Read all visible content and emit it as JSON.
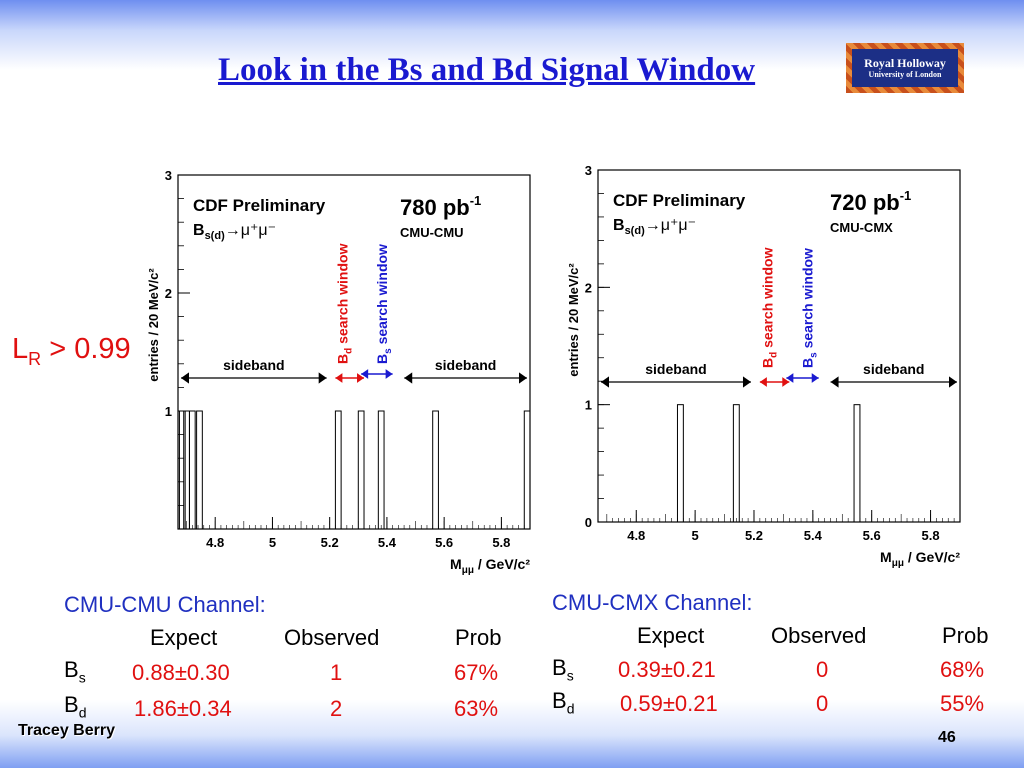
{
  "slide": {
    "title": "Look in the Bs and Bd Signal Window",
    "logo_line1": "Royal Holloway",
    "logo_line2": "University of London",
    "lr_main": "L",
    "lr_sub": "R",
    "lr_rest": " > 0.99",
    "footer_author": "Tracey Berry",
    "page_number": "46"
  },
  "colors": {
    "title": "#1a1ad0",
    "channel_title": "#2030c0",
    "value_red": "#e01010",
    "bd_window": "#e01010",
    "bs_window": "#1a1ad0"
  },
  "chart_data": [
    {
      "type": "bar",
      "panel": "left",
      "header": "CDF Preliminary",
      "process_main": "B",
      "process_sub": "s(d)",
      "process_rest": "→μ⁺μ⁻",
      "luminosity": "780 pb",
      "luminosity_exp": "-1",
      "channel_tag": "CMU-CMU",
      "xlabel": "M",
      "xlabel_sub": "μμ",
      "xlabel_rest": " / GeV/c²",
      "ylabel": "entries / 20 MeV/c²",
      "xlim": [
        4.67,
        5.9
      ],
      "ylim": [
        0,
        3
      ],
      "xticks": [
        "4.8",
        "5",
        "5.2",
        "5.4",
        "5.6",
        "5.8"
      ],
      "xtick_values": [
        4.8,
        5.0,
        5.2,
        5.4,
        5.6,
        5.8
      ],
      "yticks": [
        "1",
        "2",
        "3"
      ],
      "ytick_values": [
        1,
        2,
        3
      ],
      "events": [
        4.675,
        4.69,
        4.71,
        4.735,
        5.22,
        5.3,
        5.37,
        5.56,
        5.88
      ],
      "sideband_label": "sideband",
      "bd_window_label": "search window",
      "bs_window_label": "search window",
      "bd_window": [
        5.22,
        5.32
      ],
      "bs_window": [
        5.31,
        5.42
      ],
      "sideband_low": [
        4.67,
        5.2
      ],
      "sideband_high": [
        5.45,
        5.9
      ]
    },
    {
      "type": "bar",
      "panel": "right",
      "header": "CDF Preliminary",
      "process_main": "B",
      "process_sub": "s(d)",
      "process_rest": "→μ⁺μ⁻",
      "luminosity": "720 pb",
      "luminosity_exp": "-1",
      "channel_tag": "CMU-CMX",
      "xlabel": "M",
      "xlabel_sub": "μμ",
      "xlabel_rest": " / GeV/c²",
      "ylabel": "entries / 20 MeV/c²",
      "xlim": [
        4.67,
        5.9
      ],
      "ylim": [
        0,
        3
      ],
      "xticks": [
        "4.8",
        "5",
        "5.2",
        "5.4",
        "5.6",
        "5.8"
      ],
      "xtick_values": [
        4.8,
        5.0,
        5.2,
        5.4,
        5.6,
        5.8
      ],
      "yticks": [
        "0",
        "1",
        "2",
        "3"
      ],
      "ytick_values": [
        0,
        1,
        2,
        3
      ],
      "events": [
        4.94,
        5.13,
        5.54
      ],
      "sideband_label": "sideband",
      "bd_window_label": "search window",
      "bs_window_label": "search window",
      "bd_window": [
        5.22,
        5.32
      ],
      "bs_window": [
        5.31,
        5.42
      ],
      "sideband_low": [
        4.67,
        5.2
      ],
      "sideband_high": [
        5.45,
        5.9
      ]
    }
  ],
  "tables": {
    "left": {
      "title": "CMU-CMU Channel:",
      "headers": [
        "Expect",
        "Observed",
        "Prob"
      ],
      "rows": [
        {
          "label": "B",
          "label_sub": "s",
          "expect": "0.88±0.30",
          "observed": "1",
          "prob": "67%"
        },
        {
          "label": "B",
          "label_sub": "d",
          "expect": "1.86±0.34",
          "observed": "2",
          "prob": "63%"
        }
      ]
    },
    "right": {
      "title": "CMU-CMX Channel:",
      "headers": [
        "Expect",
        "Observed",
        "Prob"
      ],
      "rows": [
        {
          "label": "B",
          "label_sub": "s",
          "expect": "0.39±0.21",
          "observed": "0",
          "prob": "68%"
        },
        {
          "label": "B",
          "label_sub": "d",
          "expect": "0.59±0.21",
          "observed": "0",
          "prob": "55%"
        }
      ]
    }
  }
}
